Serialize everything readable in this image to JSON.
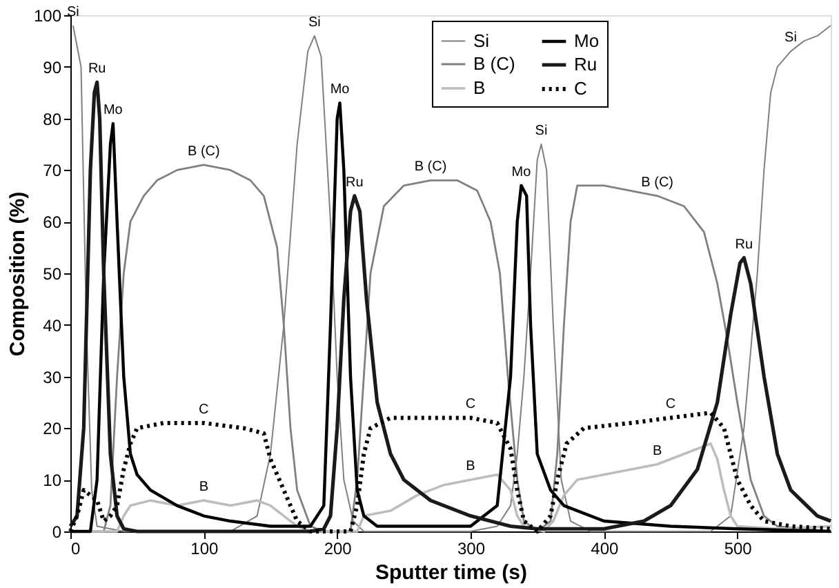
{
  "chart_data": {
    "type": "line",
    "xlabel": "Sputter time (s)",
    "ylabel": "Composition (%)",
    "xlim": [
      0,
      570
    ],
    "xticks": [
      0,
      100,
      200,
      300,
      400,
      500
    ],
    "ylim": [
      0,
      100
    ],
    "yticks": [
      0,
      10,
      20,
      30,
      40,
      50,
      60,
      70,
      80,
      90,
      100
    ],
    "grid": false,
    "legend": "top right",
    "marker": "none",
    "series": [
      {
        "name": "Si",
        "color": "#808080",
        "line_style": "solid",
        "x": [
          2,
          8,
          12,
          16,
          20,
          40,
          80,
          120,
          140,
          150,
          160,
          170,
          178,
          183,
          188,
          195,
          200,
          205,
          212,
          220,
          260,
          300,
          320,
          330,
          335,
          340,
          345,
          350,
          353,
          357,
          362,
          368,
          375,
          390,
          440,
          480,
          495,
          505,
          515,
          520,
          525,
          530,
          540,
          550,
          560,
          570
        ],
        "values": [
          98,
          90,
          40,
          8,
          1,
          0,
          0,
          0,
          3,
          15,
          40,
          75,
          93,
          96,
          92,
          60,
          30,
          10,
          2,
          0,
          0,
          0,
          1,
          5,
          15,
          30,
          50,
          72,
          75,
          70,
          40,
          10,
          2,
          0,
          0,
          0,
          3,
          20,
          50,
          70,
          85,
          90,
          93,
          95,
          96,
          98
        ]
      },
      {
        "name": "B (C)",
        "color": "#808080",
        "line_style": "solid",
        "x": [
          0,
          25,
          30,
          35,
          40,
          45,
          55,
          65,
          80,
          100,
          120,
          135,
          145,
          155,
          160,
          165,
          170,
          180,
          190,
          210,
          215,
          220,
          225,
          235,
          250,
          270,
          290,
          305,
          315,
          322,
          328,
          335,
          340,
          350,
          360,
          365,
          370,
          375,
          380,
          400,
          420,
          440,
          460,
          475,
          485,
          492,
          500,
          510,
          520,
          530,
          570
        ],
        "values": [
          0,
          0,
          5,
          30,
          50,
          60,
          65,
          68,
          70,
          71,
          70,
          68,
          65,
          55,
          40,
          20,
          8,
          1,
          0,
          0,
          10,
          30,
          50,
          63,
          67,
          68,
          68,
          66,
          60,
          50,
          30,
          10,
          2,
          0,
          2,
          15,
          40,
          60,
          67,
          67,
          66,
          65,
          63,
          58,
          48,
          38,
          25,
          10,
          3,
          1,
          0
        ]
      },
      {
        "name": "B",
        "color": "#bdbdbd",
        "line_style": "solid",
        "x": [
          0,
          35,
          40,
          45,
          60,
          80,
          100,
          120,
          140,
          150,
          160,
          170,
          180,
          215,
          220,
          240,
          260,
          280,
          300,
          320,
          330,
          335,
          340,
          355,
          362,
          370,
          380,
          400,
          420,
          440,
          460,
          480,
          485,
          490,
          495,
          500,
          530,
          570
        ],
        "values": [
          0,
          0,
          3,
          5,
          6,
          5,
          6,
          5,
          6,
          5,
          3,
          1,
          0,
          0,
          3,
          4,
          7,
          9,
          10,
          11,
          8,
          3,
          1,
          0,
          2,
          7,
          10,
          11,
          12,
          13,
          15,
          17,
          14,
          8,
          3,
          1,
          0.5,
          1
        ]
      },
      {
        "name": "Mo",
        "color": "#000000",
        "line_style": "solid",
        "x": [
          0,
          15,
          20,
          25,
          30,
          32,
          35,
          40,
          45,
          50,
          60,
          80,
          100,
          120,
          150,
          180,
          190,
          195,
          200,
          202,
          205,
          210,
          215,
          220,
          230,
          300,
          320,
          330,
          335,
          338,
          342,
          345,
          350,
          360,
          370,
          400,
          450,
          500,
          570
        ],
        "values": [
          0,
          0,
          10,
          50,
          75,
          79,
          60,
          30,
          15,
          11,
          8,
          5,
          3,
          2,
          1,
          1,
          5,
          40,
          80,
          83,
          70,
          30,
          8,
          3,
          1,
          1,
          5,
          30,
          60,
          67,
          65,
          40,
          15,
          8,
          5,
          2,
          1,
          0.5,
          0
        ]
      },
      {
        "name": "Ru",
        "color": "#1a1a1a",
        "line_style": "solid",
        "x": [
          0,
          5,
          10,
          15,
          18,
          20,
          22,
          25,
          30,
          35,
          40,
          50,
          180,
          190,
          195,
          200,
          205,
          210,
          213,
          217,
          222,
          230,
          240,
          250,
          270,
          300,
          330,
          350,
          400,
          430,
          450,
          470,
          485,
          495,
          502,
          505,
          510,
          520,
          530,
          540,
          560,
          570
        ],
        "values": [
          1,
          3,
          20,
          70,
          85,
          87,
          80,
          50,
          15,
          3,
          0.5,
          0,
          0,
          0.5,
          3,
          20,
          45,
          62,
          65,
          62,
          45,
          25,
          15,
          10,
          6,
          3,
          1,
          0.5,
          0.5,
          2,
          5,
          12,
          25,
          42,
          52,
          53,
          48,
          30,
          15,
          8,
          3,
          2
        ]
      },
      {
        "name": "C",
        "color": "#000000",
        "line_style": "dotted",
        "x": [
          0,
          5,
          10,
          15,
          20,
          25,
          30,
          35,
          40,
          45,
          50,
          70,
          100,
          130,
          145,
          150,
          160,
          170,
          180,
          210,
          215,
          220,
          225,
          240,
          270,
          300,
          320,
          330,
          335,
          340,
          350,
          360,
          365,
          372,
          385,
          420,
          450,
          480,
          490,
          500,
          510,
          520,
          540,
          570
        ],
        "values": [
          0,
          3,
          8,
          7,
          6,
          2,
          3,
          5,
          12,
          17,
          20,
          21,
          21,
          20,
          19,
          14,
          8,
          2,
          0,
          0,
          5,
          15,
          20,
          22,
          22,
          22,
          21,
          16,
          8,
          2,
          0,
          3,
          10,
          17,
          20,
          21,
          22,
          23,
          20,
          10,
          5,
          2,
          1,
          0.5
        ]
      }
    ],
    "annotations": [
      {
        "text": "Si",
        "x": 2,
        "y": 98
      },
      {
        "text": "Ru",
        "x": 20,
        "y": 87
      },
      {
        "text": "Mo",
        "x": 32,
        "y": 79
      },
      {
        "text": "B (C)",
        "x": 100,
        "y": 71
      },
      {
        "text": "C",
        "x": 100,
        "y": 21
      },
      {
        "text": "B",
        "x": 100,
        "y": 6
      },
      {
        "text": "Si",
        "x": 183,
        "y": 96
      },
      {
        "text": "Mo",
        "x": 202,
        "y": 83
      },
      {
        "text": "Ru",
        "x": 213,
        "y": 65
      },
      {
        "text": "B (C)",
        "x": 270,
        "y": 68
      },
      {
        "text": "C",
        "x": 300,
        "y": 22
      },
      {
        "text": "B",
        "x": 300,
        "y": 10
      },
      {
        "text": "Mo",
        "x": 338,
        "y": 67
      },
      {
        "text": "Si",
        "x": 353,
        "y": 75
      },
      {
        "text": "B (C)",
        "x": 440,
        "y": 65
      },
      {
        "text": "C",
        "x": 450,
        "y": 22
      },
      {
        "text": "B",
        "x": 440,
        "y": 13
      },
      {
        "text": "Ru",
        "x": 505,
        "y": 53
      },
      {
        "text": "Si",
        "x": 540,
        "y": 93
      }
    ]
  }
}
